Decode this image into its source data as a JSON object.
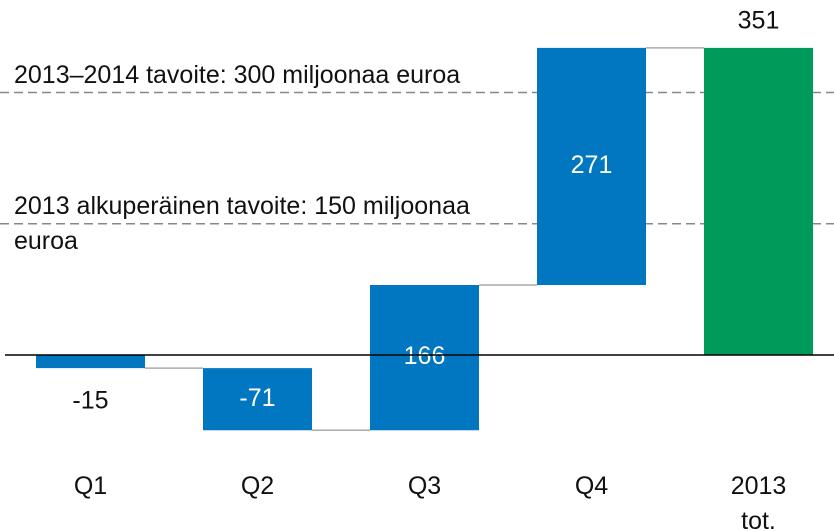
{
  "chart_data": {
    "type": "waterfall",
    "categories": [
      "Q1",
      "Q2",
      "Q3",
      "Q4",
      "2013 tot."
    ],
    "values": [
      -15,
      -71,
      166,
      271,
      351
    ],
    "totals": [
      false,
      false,
      false,
      false,
      true
    ],
    "colors": [
      "#0077c0",
      "#0077c0",
      "#0077c0",
      "#0077c0",
      "#009a5a"
    ],
    "ylim": [
      -90,
      360
    ],
    "reference_lines": [
      {
        "value": 300,
        "label": "2013–2014 tavoite: 300 miljoonaa euroa"
      },
      {
        "value": 150,
        "label": "2013 alkuperäinen tavoite: 150 miljoonaa euroa"
      }
    ]
  }
}
